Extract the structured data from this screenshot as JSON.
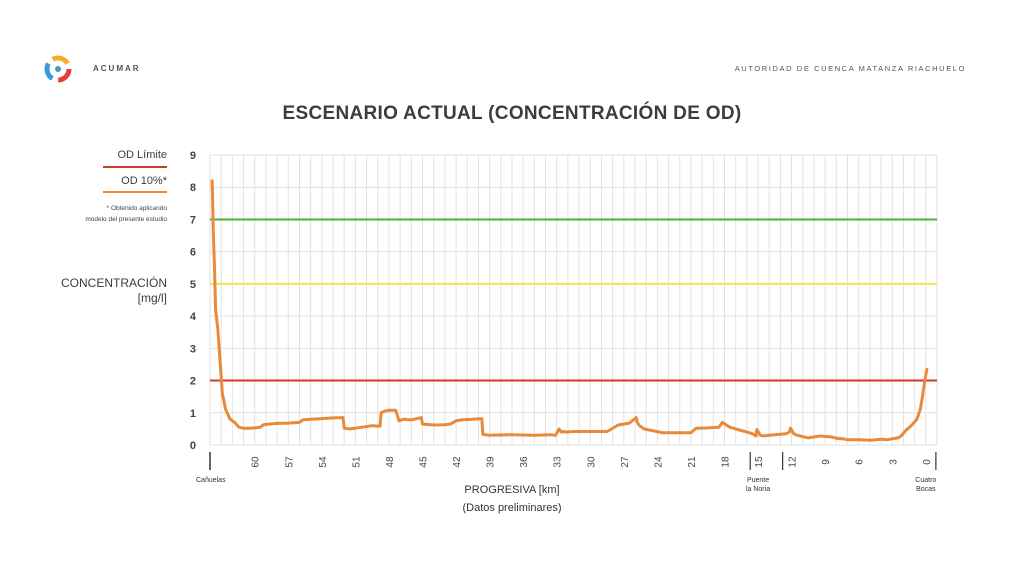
{
  "header": {
    "brand": "ACUMAR",
    "organization": "AUTORIDAD DE CUENCA MATANZA RIACHUELO"
  },
  "legend": {
    "od_limit_label": "OD Límite",
    "od_10_label": "OD 10%*",
    "note_line1": "* Obtenido aplicando",
    "note_line2": "modelo del presente estudio"
  },
  "colors": {
    "od_limit": "#d23a2a",
    "od_10": "#e88a3a",
    "green_line": "#4caf3c",
    "yellow_line": "#f3e64a",
    "grid": "#e2e2e2"
  },
  "chart_data": {
    "type": "line",
    "title": "ESCENARIO ACTUAL (CONCENTRACIÓN DE OD)",
    "ylabel_line1": "CONCENTRACIÓN",
    "ylabel_line2": "[mg/l]",
    "xlabel": "PROGRESIVA [km]",
    "xlabel_sub": "(Datos preliminares)",
    "ylim": [
      0,
      9
    ],
    "yticks": [
      0,
      1,
      2,
      3,
      4,
      5,
      6,
      7,
      8,
      9
    ],
    "xlim": [
      64,
      -1
    ],
    "xticks": [
      60,
      57,
      54,
      51,
      48,
      45,
      42,
      39,
      36,
      33,
      30,
      27,
      24,
      21,
      18,
      15,
      12,
      9,
      6,
      3,
      0
    ],
    "x_annotations": [
      {
        "x": 63.8,
        "line1": "Cañuelas",
        "line2": ""
      },
      {
        "x": 15,
        "line1": "Puente",
        "line2": "la Noria"
      },
      {
        "x": 0,
        "line1": "Cuatro",
        "line2": "Bocas"
      }
    ],
    "grid": true,
    "reference_lines": [
      {
        "name": "OD Límite",
        "y": 2,
        "color": "#d23a2a"
      },
      {
        "y": 5,
        "color": "#f3e64a"
      },
      {
        "y": 7,
        "color": "#4caf3c"
      }
    ],
    "series": [
      {
        "name": "OD 10%*",
        "color": "#e88a3a",
        "x": [
          63.8,
          63.7,
          63.6,
          63.5,
          63.3,
          63.1,
          62.9,
          62.6,
          62.2,
          61.8,
          61.4,
          61.0,
          60.5,
          60.0,
          59.5,
          59.2,
          58.8,
          58.0,
          57.0,
          56.0,
          55.7,
          55.0,
          54.0,
          53.0,
          52.1,
          52.0,
          51.5,
          51.0,
          50.5,
          49.5,
          48.8,
          48.7,
          48.4,
          48.0,
          47.4,
          47.1,
          46.7,
          46.0,
          45.5,
          45.1,
          45.0,
          44.0,
          43.0,
          42.5,
          42.0,
          41.5,
          40.5,
          39.7,
          39.6,
          39.0,
          37.0,
          35.0,
          33.5,
          33.1,
          32.8,
          32.6,
          32.4,
          32.2,
          31.5,
          30.0,
          28.5,
          27.5,
          27.0,
          26.5,
          25.9,
          25.8,
          25.6,
          25.2,
          24.5,
          23.5,
          22.5,
          21.5,
          21.0,
          20.6,
          20.5,
          19.5,
          18.5,
          18.2,
          17.5,
          16.5,
          16.0,
          15.5,
          15.2,
          15.1,
          14.8,
          14.5,
          14.0,
          13.5,
          12.5,
          12.2,
          12.1,
          11.8,
          11.5,
          10.5,
          9.5,
          8.5,
          7.8,
          7.5,
          7.0,
          6.0,
          5.0,
          4.0,
          3.5,
          2.5,
          2.2,
          1.8,
          1.3,
          0.8,
          0.5,
          0.3,
          0.1,
          -0.1
        ],
        "values": [
          8.2,
          6.5,
          5.5,
          4.2,
          3.6,
          2.6,
          1.6,
          1.1,
          0.8,
          0.7,
          0.55,
          0.52,
          0.52,
          0.53,
          0.55,
          0.63,
          0.65,
          0.67,
          0.68,
          0.7,
          0.78,
          0.8,
          0.82,
          0.84,
          0.85,
          0.52,
          0.5,
          0.52,
          0.55,
          0.6,
          0.58,
          1.0,
          1.05,
          1.08,
          1.08,
          0.75,
          0.8,
          0.78,
          0.82,
          0.85,
          0.65,
          0.62,
          0.63,
          0.65,
          0.75,
          0.78,
          0.8,
          0.82,
          0.33,
          0.3,
          0.32,
          0.3,
          0.32,
          0.3,
          0.5,
          0.4,
          0.42,
          0.4,
          0.42,
          0.42,
          0.42,
          0.62,
          0.65,
          0.68,
          0.85,
          0.7,
          0.6,
          0.5,
          0.45,
          0.38,
          0.38,
          0.38,
          0.38,
          0.5,
          0.52,
          0.53,
          0.55,
          0.7,
          0.55,
          0.45,
          0.4,
          0.35,
          0.28,
          0.48,
          0.3,
          0.28,
          0.3,
          0.32,
          0.35,
          0.4,
          0.52,
          0.35,
          0.3,
          0.22,
          0.28,
          0.25,
          0.2,
          0.2,
          0.16,
          0.16,
          0.15,
          0.18,
          0.16,
          0.22,
          0.28,
          0.45,
          0.6,
          0.8,
          1.1,
          1.5,
          2.0,
          2.35
        ]
      }
    ]
  }
}
